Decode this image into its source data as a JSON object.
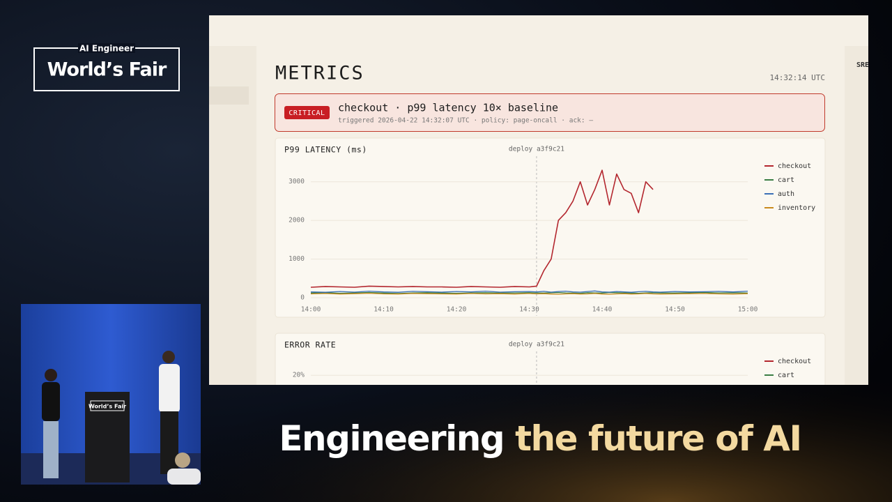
{
  "branding": {
    "logo_top": "AI Engineer",
    "logo_main": "World’s Fair",
    "podium_text": "World’s Fair",
    "tagline_white": "Engineering",
    "tagline_gold": "the future of AI"
  },
  "dashboard": {
    "title": "METRICS",
    "clock": "14:32:14 UTC",
    "side_label": "SRE",
    "alert": {
      "badge": "CRITICAL",
      "headline": "checkout · p99 latency 10× baseline",
      "detail": "triggered 2026-04-22 14:32:07 UTC · policy: page-oncall · ack: —"
    }
  },
  "chart_data": [
    {
      "type": "line",
      "title": "P99 LATENCY (ms)",
      "annotation": {
        "text": "deploy a3f9c21",
        "x": "14:31"
      },
      "x": [
        "14:00",
        "14:02",
        "14:04",
        "14:06",
        "14:08",
        "14:10",
        "14:12",
        "14:14",
        "14:16",
        "14:18",
        "14:20",
        "14:22",
        "14:24",
        "14:26",
        "14:28",
        "14:30",
        "14:31",
        "14:32",
        "14:33",
        "14:34",
        "14:35",
        "14:36",
        "14:37",
        "14:38",
        "14:39",
        "14:40",
        "14:41",
        "14:42",
        "14:43",
        "14:44",
        "14:45",
        "14:46",
        "14:47",
        "14:48",
        "14:50",
        "14:52",
        "14:54",
        "14:56",
        "14:58",
        "15:00"
      ],
      "series": [
        {
          "name": "checkout",
          "color": "#b3262e",
          "values": [
            270,
            290,
            280,
            270,
            300,
            290,
            280,
            290,
            280,
            280,
            270,
            290,
            280,
            270,
            290,
            280,
            300,
            700,
            1000,
            2000,
            2200,
            2500,
            3000,
            2400,
            2800,
            3300,
            2400,
            3200,
            2800,
            2700,
            2200,
            3000,
            2800,
            null,
            null,
            null,
            null,
            null,
            null,
            null
          ]
        },
        {
          "name": "cart",
          "color": "#3a7d44",
          "values": [
            120,
            130,
            115,
            125,
            135,
            120,
            110,
            125,
            130,
            120,
            115,
            125,
            130,
            120,
            125,
            130,
            125,
            120,
            130,
            135,
            125,
            120,
            115,
            130,
            125,
            120,
            135,
            130,
            125,
            120,
            115,
            125,
            130,
            125,
            120,
            130,
            135,
            125,
            130,
            120
          ]
        },
        {
          "name": "auth",
          "color": "#3b6fb6",
          "values": [
            150,
            140,
            160,
            145,
            170,
            150,
            140,
            165,
            155,
            145,
            160,
            150,
            170,
            145,
            155,
            160,
            150,
            165,
            145,
            160,
            170,
            150,
            145,
            160,
            175,
            150,
            145,
            160,
            150,
            140,
            155,
            165,
            150,
            145,
            160,
            150,
            155,
            165,
            150,
            170
          ]
        },
        {
          "name": "inventory",
          "color": "#c98a1c",
          "values": [
            100,
            110,
            95,
            105,
            115,
            100,
            95,
            110,
            105,
            100,
            95,
            110,
            100,
            105,
            95,
            110,
            100,
            105,
            95,
            90,
            100,
            105,
            95,
            100,
            110,
            95,
            90,
            100,
            105,
            95,
            100,
            110,
            100,
            95,
            100,
            105,
            110,
            100,
            95,
            105
          ]
        }
      ],
      "xlim": [
        "14:00",
        "15:00"
      ],
      "xticks": [
        "14:00",
        "14:10",
        "14:20",
        "14:30",
        "14:40",
        "14:50",
        "15:00"
      ],
      "ylim": [
        0,
        3500
      ],
      "yticks": [
        0,
        1000,
        2000,
        3000
      ],
      "grid": true
    },
    {
      "type": "line",
      "title": "ERROR RATE",
      "annotation": {
        "text": "deploy a3f9c21",
        "x": "14:31"
      },
      "series": [
        {
          "name": "checkout",
          "color": "#b3262e"
        },
        {
          "name": "cart",
          "color": "#3a7d44"
        }
      ],
      "xlim": [
        "14:00",
        "15:00"
      ],
      "ylim": [
        0,
        25
      ],
      "yticks": [
        {
          "value": 20,
          "label": "20%"
        }
      ],
      "grid": true
    }
  ]
}
